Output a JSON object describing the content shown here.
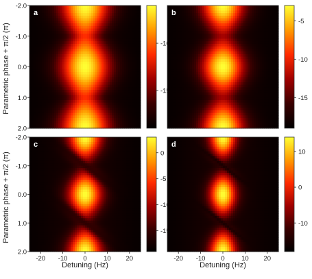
{
  "chart_data": [
    {
      "panel": "a",
      "type": "heatmap",
      "x_ticks": [
        -20,
        -10,
        0,
        10,
        20
      ],
      "y_ticks": [
        -2.0,
        -1.0,
        0.0,
        1.0,
        2.0
      ],
      "x_range": [
        -25,
        25
      ],
      "y_range": [
        -2.0,
        2.0
      ],
      "colorbar_ticks": [
        -10,
        -15
      ],
      "colorbar_range": [
        -19,
        -6
      ],
      "peak_pattern": "vertical ridge at 0 Hz with maxima at phase -2, 0, 2"
    },
    {
      "panel": "b",
      "type": "heatmap",
      "x_ticks": [
        -20,
        -10,
        0,
        10,
        20
      ],
      "y_ticks": [
        -2.0,
        -1.0,
        0.0,
        1.0,
        2.0
      ],
      "x_range": [
        -25,
        25
      ],
      "y_range": [
        -2.0,
        2.0
      ],
      "colorbar_ticks": [
        -5,
        -10,
        -15
      ],
      "colorbar_range": [
        -19,
        -3
      ],
      "peak_pattern": "separated lobes at 0 Hz with maxima at phase -2, 0, 2"
    },
    {
      "panel": "c",
      "type": "heatmap",
      "x_ticks": [
        -20,
        -10,
        0,
        10,
        20
      ],
      "y_ticks": [
        -2.0,
        -1.0,
        0.0,
        1.0,
        2.0
      ],
      "x_range": [
        -25,
        25
      ],
      "y_range": [
        -2.0,
        2.0
      ],
      "colorbar_ticks": [
        0,
        -5,
        -10,
        -15
      ],
      "colorbar_range": [
        -19,
        3
      ],
      "peak_pattern": "lobes at 0 Hz with dark tilted nodes near phase -1 and 1"
    },
    {
      "panel": "d",
      "type": "heatmap",
      "x_ticks": [
        -20,
        -10,
        0,
        10,
        20
      ],
      "y_ticks": [
        -2.0,
        -1.0,
        0.0,
        1.0,
        2.0
      ],
      "x_range": [
        -25,
        25
      ],
      "y_range": [
        -2.0,
        2.0
      ],
      "colorbar_ticks": [
        10,
        0,
        -10
      ],
      "colorbar_range": [
        -18,
        14
      ],
      "peak_pattern": "narrow lobes at 0 Hz with sharp dark tilted nodes near phase -1 and 1"
    }
  ],
  "axes": {
    "xlabel": "Detuning (Hz)",
    "ylabel": "Parametric phase + π/2 (π)"
  },
  "colormap": [
    "#000000",
    "#3a0000",
    "#a00000",
    "#ff2a00",
    "#ff9a00",
    "#ffff33"
  ]
}
